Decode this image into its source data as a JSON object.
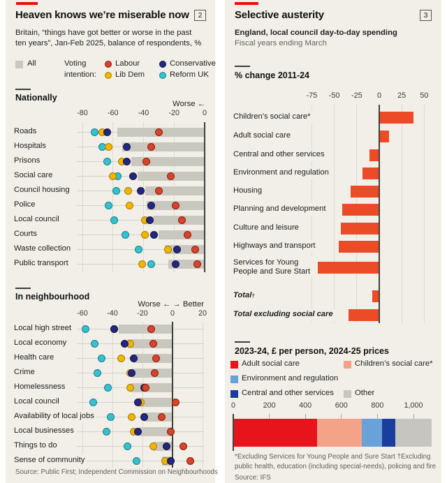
{
  "colors": {
    "accent_red": "#e3120b",
    "panel_bg": "#f1efe7",
    "all_bar": "#c9c8bf",
    "labour": {
      "fill": "#d8432b",
      "border": "#8a1d10"
    },
    "conservative": {
      "fill": "#23277f",
      "border": "#101347"
    },
    "libdem": {
      "fill": "#eeb600",
      "border": "#b07b06"
    },
    "reform": {
      "fill": "#38c0cf",
      "border": "#0f818f"
    }
  },
  "left_panel": {
    "tag_number": "2",
    "title": "Heaven knows we’re miserable now",
    "subtitle_line1": "Britain, “things have got better or worse in the past",
    "subtitle_line2": "ten years”, Jan-Feb 2025, balance of respondents, %",
    "legend": {
      "all_label": "All",
      "voting_line1": "Voting",
      "voting_line2": "intention:",
      "parties": [
        {
          "name": "Labour",
          "key": "labour"
        },
        {
          "name": "Conservative",
          "key": "conservative"
        },
        {
          "name": "Lib Dem",
          "key": "libdem"
        },
        {
          "name": "Reform UK",
          "key": "reform"
        }
      ]
    },
    "source": "Source: Public First; Independent Commission on Neighbourhoods"
  },
  "right_panel": {
    "tag_number": "3",
    "title": "Selective austerity",
    "subtitle_line1": "England, local council day-to-day spending",
    "subtitle_line2": "Fiscal years ending March",
    "footnote_line1": "*Excluding Services for Young People and Sure Start    †Excluding",
    "footnote_line2": "public health, education (including special-needs), policing and fire",
    "source": "Source: IFS"
  },
  "chart_data": [
    {
      "type": "dot-bar",
      "title": "Nationally",
      "axis_note": "Worse ←",
      "x_ticks": [
        -80,
        -60,
        -40,
        -20,
        0
      ],
      "xlim": [
        -80,
        0
      ],
      "series": [
        "All",
        "Labour",
        "Lib Dem",
        "Conservative",
        "Reform UK"
      ],
      "rows": [
        {
          "label": "Roads",
          "all": -57,
          "labour": -30,
          "libdem": -67,
          "conservative": -64,
          "reform": -72
        },
        {
          "label": "Hospitals",
          "all": -54,
          "labour": -35,
          "libdem": -63,
          "conservative": -51,
          "reform": -67
        },
        {
          "label": "Prisons",
          "all": -48,
          "labour": -38,
          "libdem": -54,
          "conservative": -51,
          "reform": -64
        },
        {
          "label": "Social care",
          "all": -44,
          "labour": -22,
          "libdem": -60,
          "conservative": -47,
          "reform": -57
        },
        {
          "label": "Council housing",
          "all": -39,
          "labour": -30,
          "libdem": -50,
          "conservative": -42,
          "reform": -58
        },
        {
          "label": "Police",
          "all": -38,
          "labour": -19,
          "libdem": -49,
          "conservative": -35,
          "reform": -63
        },
        {
          "label": "Local council",
          "all": -34,
          "labour": -15,
          "libdem": -39,
          "conservative": -36,
          "reform": -59
        },
        {
          "label": "Courts",
          "all": -30,
          "labour": -11,
          "libdem": -39,
          "conservative": -33,
          "reform": -52
        },
        {
          "label": "Waste collection",
          "all": -26,
          "labour": -6,
          "libdem": -24,
          "conservative": -18,
          "reform": -43
        },
        {
          "label": "Public transport",
          "all": -24,
          "labour": -5,
          "libdem": -41,
          "conservative": -19,
          "reform": -35
        }
      ]
    },
    {
      "type": "dot-bar",
      "title": "In neighbourhood",
      "axis_note": "Worse ← → Better",
      "x_ticks": [
        -60,
        -40,
        -20,
        0,
        20
      ],
      "xlim": [
        -60,
        20
      ],
      "series": [
        "All",
        "Labour",
        "Lib Dem",
        "Conservative",
        "Reform UK"
      ],
      "rows": [
        {
          "label": "Local high street",
          "all": -36,
          "labour": -14,
          "libdem": -39,
          "conservative": -39,
          "reform": -58
        },
        {
          "label": "Local economy",
          "all": -30,
          "labour": -13,
          "libdem": -28,
          "conservative": -32,
          "reform": -52
        },
        {
          "label": "Health care",
          "all": -26,
          "labour": -11,
          "libdem": -34,
          "conservative": -26,
          "reform": -47
        },
        {
          "label": "Crime",
          "all": -27,
          "labour": -12,
          "libdem": -28,
          "conservative": -27,
          "reform": -50
        },
        {
          "label": "Homelessness",
          "all": -28,
          "labour": -18,
          "libdem": -28,
          "conservative": -19,
          "reform": -43
        },
        {
          "label": "Local council",
          "all": -23,
          "labour": 2,
          "libdem": -21,
          "conservative": -23,
          "reform": -53
        },
        {
          "label": "Availability of local jobs",
          "all": -19,
          "labour": -7,
          "libdem": -27,
          "conservative": -19,
          "reform": -41
        },
        {
          "label": "Local businesses",
          "all": -22,
          "labour": -1,
          "libdem": -26,
          "conservative": -23,
          "reform": -44
        },
        {
          "label": "Things to do",
          "all": -13,
          "labour": 7,
          "libdem": -13,
          "conservative": -4,
          "reform": -30
        },
        {
          "label": "Sense of community",
          "all": -7,
          "labour": 12,
          "libdem": -5,
          "conservative": -1,
          "reform": -24
        }
      ]
    },
    {
      "type": "bar",
      "title": "% change 2011-24",
      "x_ticks": [
        -75,
        -50,
        -25,
        0,
        25,
        50
      ],
      "xlim": [
        -75,
        50
      ],
      "bar_color": "#ec4b27",
      "rows": [
        {
          "label": "Children’s social care*",
          "value": 38
        },
        {
          "label": "Adult social care",
          "value": 11
        },
        {
          "label": "Central and other services",
          "value": -11
        },
        {
          "label": "Environment and regulation",
          "value": -19
        },
        {
          "label": "Housing",
          "value": -32
        },
        {
          "label": "Planning and development",
          "value": -41
        },
        {
          "label": "Culture and leisure",
          "value": -43
        },
        {
          "label": "Highways and transport",
          "value": -45
        },
        {
          "label": "Services for Young\nPeople and Sure Start",
          "value": -68
        },
        {
          "label": "Total",
          "marker": "†",
          "italic": true,
          "value": -8
        },
        {
          "label": "Total excluding social care",
          "italic": true,
          "value": -34
        }
      ]
    },
    {
      "type": "stacked-bar",
      "title": "2023-24, £ per person, 2024-25 prices",
      "x_ticks": [
        0,
        200,
        400,
        600,
        800,
        1000
      ],
      "tick_labels": [
        "0",
        "200",
        "400",
        "600",
        "800",
        "1,000"
      ],
      "segments": [
        {
          "label": "Adult social care",
          "value": 465,
          "color": "#e8141c"
        },
        {
          "label": "Children’s social care*",
          "value": 250,
          "color": "#f4a388"
        },
        {
          "label": "Environment and regulation",
          "value": 110,
          "color": "#68a2d8"
        },
        {
          "label": "Central and other services",
          "value": 75,
          "color": "#1b3e9e"
        },
        {
          "label": "Other",
          "value": 200,
          "color": "#c6c5bf"
        }
      ]
    }
  ]
}
